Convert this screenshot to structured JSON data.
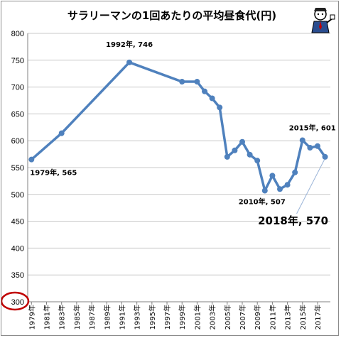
{
  "chart_data": {
    "type": "line",
    "title": "サラリーマンの1回あたりの平均昼食代(円)",
    "xlabel": "",
    "ylabel": "",
    "ylim": [
      300,
      800
    ],
    "yticks": [
      300,
      350,
      400,
      450,
      500,
      550,
      600,
      650,
      700,
      750,
      800
    ],
    "grid": true,
    "legend": "none",
    "x_range": [
      1979,
      2018
    ],
    "x_tick_labels": [
      "1979年",
      "1981年",
      "1983年",
      "1985年",
      "1987年",
      "1989年",
      "1991年",
      "1993年",
      "1995年",
      "1997年",
      "1999年",
      "2001年",
      "2003年",
      "2005年",
      "2007年",
      "2009年",
      "2011年",
      "2013年",
      "2015年",
      "2017年"
    ],
    "series": [
      {
        "x": [
          1979,
          1983,
          1992,
          1999,
          2001,
          2002,
          2003,
          2004,
          2005,
          2006,
          2007,
          2008,
          2009,
          2010,
          2011,
          2012,
          2013,
          2014,
          2015,
          2016,
          2017,
          2018
        ],
        "values": [
          565,
          614,
          746,
          710,
          710,
          692,
          679,
          662,
          570,
          582,
          598,
          574,
          563,
          507,
          535,
          510,
          518,
          541,
          601,
          587,
          590,
          570
        ]
      }
    ],
    "annotations": [
      {
        "text": "1979年, 565",
        "x": 1979,
        "y": 565
      },
      {
        "text": "1992年, 746",
        "x": 1992,
        "y": 746
      },
      {
        "text": "2010年, 507",
        "x": 2010,
        "y": 507
      },
      {
        "text": "2015年, 601",
        "x": 2015,
        "y": 601
      },
      {
        "text": "2018年, 570",
        "x": 2018,
        "y": 570
      }
    ],
    "line_color": "#4f81bd",
    "highlight_color": "#c00000"
  }
}
